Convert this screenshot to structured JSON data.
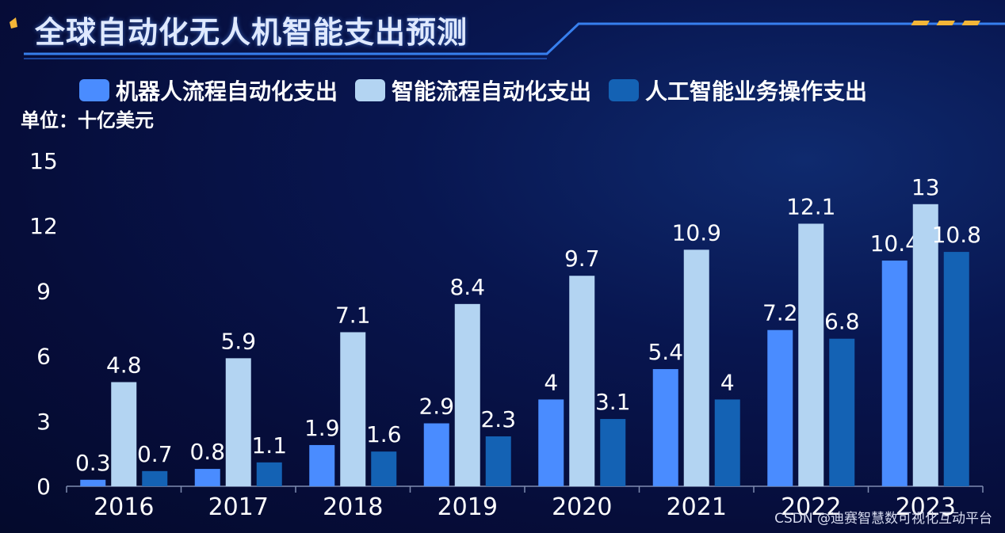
{
  "title": "全球自动化无人机智能支出预测",
  "unit": "单位：十亿美元",
  "watermark": "CSDN @迪赛智慧数可视化互动平台",
  "chart_data": {
    "type": "bar",
    "title": "全球自动化无人机智能支出预测",
    "categories": [
      "2016",
      "2017",
      "2018",
      "2019",
      "2020",
      "2021",
      "2022",
      "2023"
    ],
    "series": [
      {
        "name": "机器人流程自动化支出",
        "color": "#4a8cff",
        "values": [
          0.3,
          0.8,
          1.9,
          2.9,
          4,
          5.4,
          7.2,
          10.4
        ]
      },
      {
        "name": "智能流程自动化支出",
        "color": "#b3d4f2",
        "values": [
          4.8,
          5.9,
          7.1,
          8.4,
          9.7,
          10.9,
          12.1,
          13
        ]
      },
      {
        "name": "人工智能业务操作支出",
        "color": "#1462b4",
        "values": [
          0.7,
          1.1,
          1.6,
          2.3,
          3.1,
          4,
          6.8,
          10.8
        ]
      }
    ],
    "ylim": [
      0,
      15
    ],
    "yticks": [
      0,
      3,
      6,
      9,
      12,
      15
    ],
    "legend_position": "top",
    "grid": false
  }
}
